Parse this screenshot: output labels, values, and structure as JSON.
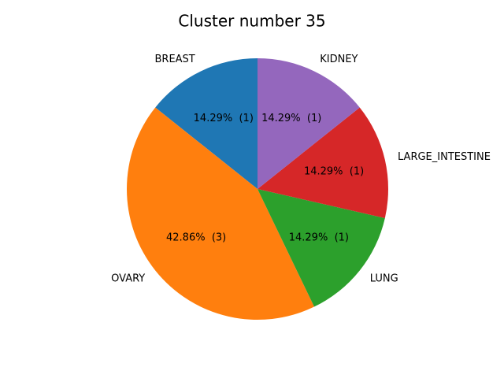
{
  "chart_data": {
    "type": "pie",
    "title": "Cluster number 35",
    "start_angle_deg": 90,
    "direction": "counterclockwise",
    "slices": [
      {
        "label": "BREAST",
        "value": 1,
        "pct_text": "14.29%  (1)",
        "color": "#1f77b4"
      },
      {
        "label": "OVARY",
        "value": 3,
        "pct_text": "42.86%  (3)",
        "color": "#ff7f0e"
      },
      {
        "label": "LUNG",
        "value": 1,
        "pct_text": "14.29%  (1)",
        "color": "#2ca02c"
      },
      {
        "label": "LARGE_INTESTINE",
        "value": 1,
        "pct_text": "14.29%  (1)",
        "color": "#d62728"
      },
      {
        "label": "KIDNEY",
        "value": 1,
        "pct_text": "14.29%  (1)",
        "color": "#9467bd"
      }
    ]
  }
}
